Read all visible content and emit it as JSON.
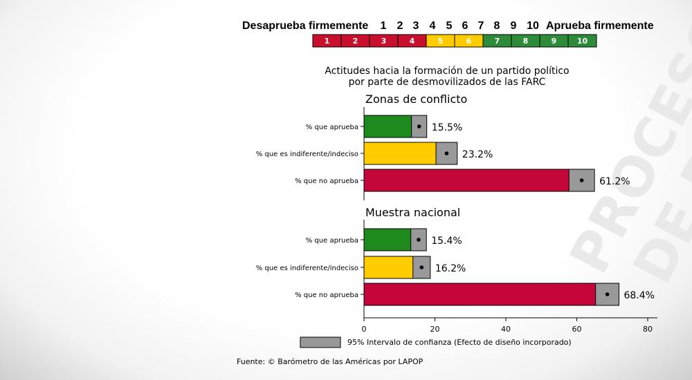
{
  "watermark": [
    "PROCESO",
    "DE PAZ"
  ],
  "scale": {
    "left_label": "Desaprueba firmemente",
    "right_label": "Aprueba firmemente",
    "numbers": [
      "1",
      "2",
      "3",
      "4",
      "5",
      "6",
      "7",
      "8",
      "9",
      "10"
    ],
    "box_colors": [
      "#c8102e",
      "#c8102e",
      "#c8102e",
      "#c8102e",
      "#ffcc00",
      "#ffcc00",
      "#2e8b3a",
      "#2e8b3a",
      "#2e8b3a",
      "#2e8b3a"
    ]
  },
  "chart_data": {
    "type": "bar",
    "orientation": "horizontal",
    "title": [
      "Actitudes hacia la formación de un partido político",
      "por parte de desmovilizados de las FARC"
    ],
    "xlim": [
      0,
      80
    ],
    "xticks": [
      0,
      20,
      40,
      60,
      80
    ],
    "groups": [
      {
        "name": "Zonas de conflicto",
        "bars": [
          {
            "label": "% que aprueba",
            "value": 15.5,
            "ci_low": 13.4,
            "ci_high": 17.7,
            "value_label": "15.5%",
            "color": "#1e8a1e"
          },
          {
            "label": "% que es indiferente/indeciso",
            "value": 23.2,
            "ci_low": 20.3,
            "ci_high": 26.3,
            "value_label": "23.2%",
            "color": "#ffcc00"
          },
          {
            "label": "% que no aprueba",
            "value": 61.2,
            "ci_low": 57.8,
            "ci_high": 65.0,
            "value_label": "61.2%",
            "color": "#c4063a"
          }
        ]
      },
      {
        "name": "Muestra nacional",
        "bars": [
          {
            "label": "% que aprueba",
            "value": 15.4,
            "ci_low": 13.2,
            "ci_high": 17.6,
            "value_label": "15.4%",
            "color": "#1e8a1e"
          },
          {
            "label": "% que es indiferente/indeciso",
            "value": 16.2,
            "ci_low": 13.8,
            "ci_high": 18.7,
            "value_label": "16.2%",
            "color": "#ffcc00"
          },
          {
            "label": "% que no aprueba",
            "value": 68.4,
            "ci_low": 65.3,
            "ci_high": 71.9,
            "value_label": "68.4%",
            "color": "#c4063a"
          }
        ]
      }
    ],
    "ci_color": "#999999",
    "legend": "95% Intervalo de confianza (Efecto de diseño incorporado)",
    "source": "Fuente: © Barómetro de las Américas por LAPOP"
  }
}
